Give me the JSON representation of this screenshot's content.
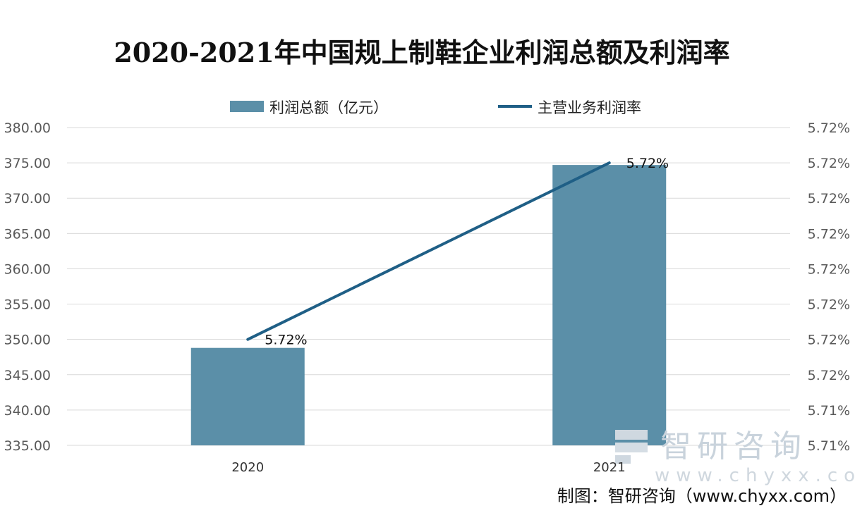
{
  "chart_data": {
    "type": "bar",
    "title": "2020-2021年中国规上制鞋企业利润总额及利润率",
    "categories": [
      "2020",
      "2021"
    ],
    "series": [
      {
        "name": "利润总额（亿元）",
        "type": "bar",
        "axis": "left",
        "values": [
          348.8,
          374.7
        ]
      },
      {
        "name": "主营业务利润率",
        "type": "line",
        "axis": "right",
        "values": [
          5.72,
          5.72
        ],
        "labels": [
          "5.72%",
          "5.72%"
        ]
      }
    ],
    "ylim": [
      335,
      380
    ],
    "y_ticks": [
      "335.00",
      "340.00",
      "345.00",
      "350.00",
      "355.00",
      "360.00",
      "365.00",
      "370.00",
      "375.00",
      "380.00"
    ],
    "y2_ticks": [
      "5.71%",
      "5.71%",
      "5.72%",
      "5.72%",
      "5.72%",
      "5.72%",
      "5.72%",
      "5.72%",
      "5.72%",
      "5.72%"
    ],
    "line_plot_levels": [
      350,
      375
    ],
    "legend_position": "top",
    "grid": true
  },
  "colors": {
    "bar": "#5b8fa8",
    "line": "#1f5f86",
    "grid": "#d9d9d9"
  },
  "watermark": {
    "name": "智研咨询",
    "url": "www.chyxx.com"
  },
  "source": "制图：智研咨询（www.chyxx.com）"
}
